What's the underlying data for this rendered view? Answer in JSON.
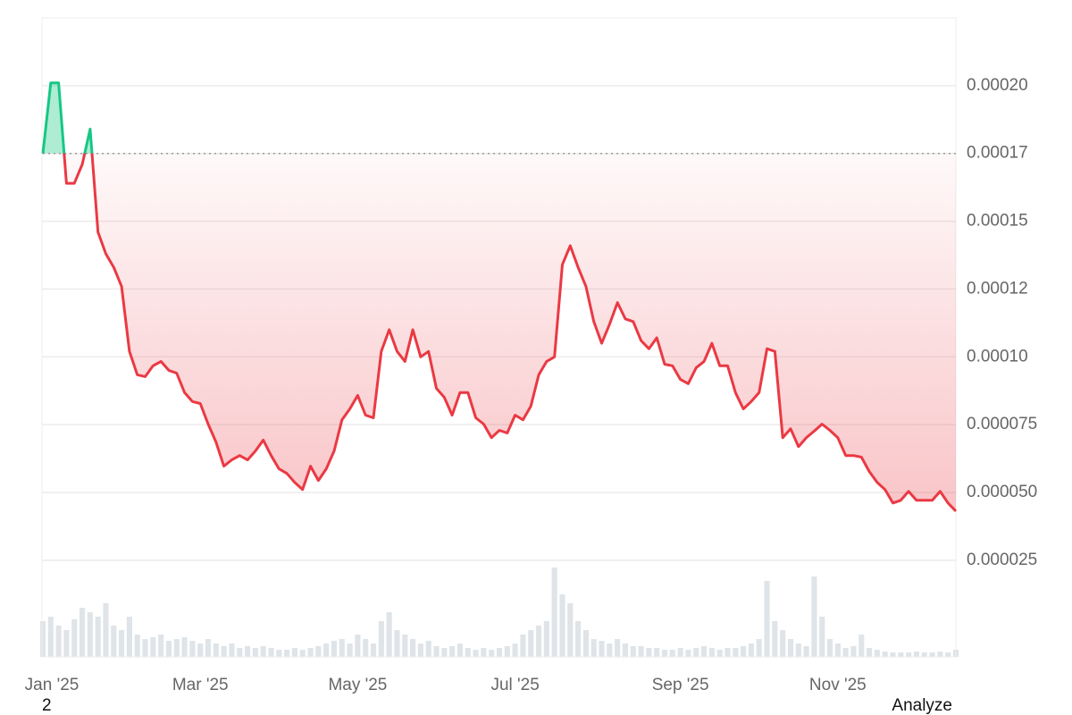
{
  "chart_data": {
    "type": "line",
    "categories": [
      "Jan '25",
      null,
      null,
      null,
      null,
      null,
      null,
      null,
      null,
      null,
      null,
      null,
      null,
      null,
      null,
      null,
      null,
      null,
      null,
      null,
      "Mar '25",
      null,
      null,
      null,
      null,
      null,
      null,
      null,
      null,
      null,
      null,
      null,
      null,
      null,
      null,
      null,
      null,
      null,
      null,
      null,
      "May '25",
      null,
      null,
      null,
      null,
      null,
      null,
      null,
      null,
      null,
      null,
      null,
      null,
      null,
      null,
      null,
      null,
      null,
      null,
      null,
      "Jul '25",
      null,
      null,
      null,
      null,
      null,
      null,
      null,
      null,
      null,
      null,
      null,
      null,
      null,
      null,
      null,
      null,
      null,
      null,
      null,
      null,
      "Sep '25",
      null,
      null,
      null,
      null,
      null,
      null,
      null,
      null,
      null,
      null,
      null,
      null,
      null,
      null,
      null,
      null,
      null,
      null,
      null,
      "Nov '25",
      null,
      null,
      null,
      null,
      null,
      null,
      null,
      null,
      null,
      null,
      null,
      null,
      null,
      null,
      null
    ],
    "values": [
      0.000175,
      0.000201,
      0.000201,
      0.000164,
      0.000164,
      0.000171,
      0.000184,
      0.000146,
      0.000138,
      0.000133,
      0.000126,
      0.000102,
      9.34e-05,
      9.27e-05,
      9.67e-05,
      9.83e-05,
      9.5e-05,
      9.4e-05,
      8.68e-05,
      8.35e-05,
      8.28e-05,
      7.52e-05,
      6.86e-05,
      5.97e-05,
      6.2e-05,
      6.36e-05,
      6.2e-05,
      6.53e-05,
      6.93e-05,
      6.36e-05,
      5.87e-05,
      5.7e-05,
      5.37e-05,
      5.11e-05,
      5.97e-05,
      5.44e-05,
      5.87e-05,
      6.53e-05,
      7.68e-05,
      8.08e-05,
      8.58e-05,
      7.85e-05,
      7.75e-05,
      0.000102,
      0.00011,
      0.000102,
      9.83e-05,
      0.00011,
      0.0001,
      0.000102,
      8.84e-05,
      8.51e-05,
      7.85e-05,
      8.68e-05,
      8.68e-05,
      7.75e-05,
      7.52e-05,
      7.02e-05,
      7.29e-05,
      7.19e-05,
      7.85e-05,
      7.68e-05,
      8.18e-05,
      9.34e-05,
      9.83e-05,
      0.0001,
      0.000134,
      0.000141,
      0.000133,
      0.000126,
      0.000113,
      0.000105,
      0.000112,
      0.00012,
      0.000114,
      0.000113,
      0.000106,
      0.000103,
      0.000107,
      9.73e-05,
      9.67e-05,
      9.17e-05,
      9.01e-05,
      9.6e-05,
      9.83e-05,
      0.000105,
      9.67e-05,
      9.67e-05,
      8.68e-05,
      8.08e-05,
      8.35e-05,
      8.68e-05,
      0.000103,
      0.000102,
      7.02e-05,
      7.35e-05,
      6.69e-05,
      7.02e-05,
      7.26e-05,
      7.52e-05,
      7.29e-05,
      7.02e-05,
      6.36e-05,
      6.36e-05,
      6.3e-05,
      5.77e-05,
      5.37e-05,
      5.11e-05,
      4.61e-05,
      4.71e-05,
      5.04e-05,
      4.71e-05,
      4.71e-05,
      4.71e-05,
      5.04e-05,
      4.61e-05,
      4.31e-05
    ],
    "volume": [
      40,
      45,
      35,
      30,
      42,
      55,
      50,
      45,
      60,
      35,
      30,
      45,
      25,
      20,
      22,
      25,
      18,
      20,
      22,
      18,
      15,
      20,
      15,
      12,
      15,
      10,
      12,
      10,
      12,
      10,
      8,
      8,
      10,
      8,
      10,
      12,
      15,
      18,
      20,
      15,
      25,
      20,
      15,
      40,
      50,
      30,
      25,
      20,
      15,
      18,
      12,
      10,
      12,
      15,
      10,
      8,
      10,
      8,
      10,
      12,
      15,
      25,
      30,
      35,
      40,
      100,
      70,
      60,
      40,
      30,
      20,
      18,
      15,
      20,
      15,
      12,
      12,
      10,
      10,
      8,
      8,
      10,
      8,
      10,
      12,
      10,
      8,
      10,
      10,
      12,
      15,
      20,
      85,
      40,
      30,
      20,
      15,
      12,
      90,
      45,
      20,
      15,
      10,
      12,
      25,
      10,
      8,
      6,
      5,
      5,
      5,
      6,
      5,
      5,
      6,
      5,
      8
    ],
    "baseline": 0.000175,
    "color": "#ea3943",
    "up_color": "#16c784",
    "volume_color": "#dfe4e8",
    "ylim": [
      0,
      0.000225
    ],
    "yticks": [
      {
        "value": 0.0002,
        "label": "0.00020"
      },
      {
        "value": 0.000175,
        "label": "0.00017"
      },
      0.00015,
      {
        "value": 0.000125,
        "label": "0.00012"
      },
      {
        "value": 0.0001,
        "label": "0.00010"
      },
      7.5e-05,
      {
        "value": 5e-05,
        "label": "0.000050"
      },
      2.5e-05
    ],
    "grid": true
  },
  "ui": {
    "page_indicator": "2",
    "analyze_button": "Analyze"
  }
}
